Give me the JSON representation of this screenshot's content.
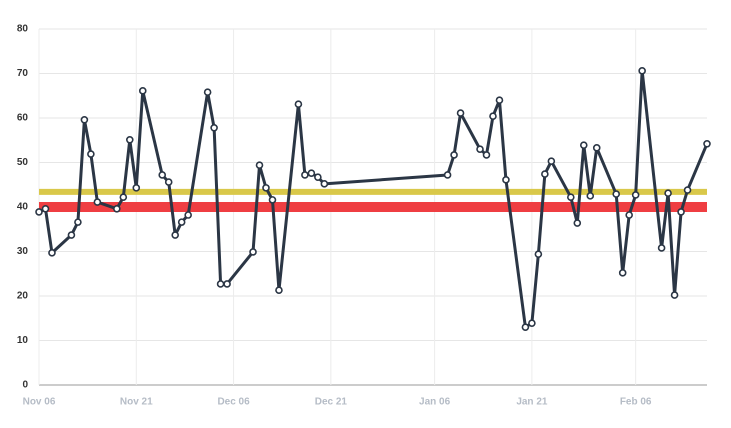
{
  "chart_data": {
    "type": "line",
    "x": [
      "Nov 06",
      "Nov 07",
      "Nov 08",
      "Nov 11",
      "Nov 12",
      "Nov 13",
      "Nov 14",
      "Nov 15",
      "Nov 18",
      "Nov 19",
      "Nov 20",
      "Nov 21",
      "Nov 22",
      "Nov 25",
      "Nov 26",
      "Nov 27",
      "Nov 28",
      "Nov 29",
      "Dec 02",
      "Dec 03",
      "Dec 04",
      "Dec 05",
      "Dec 09",
      "Dec 10",
      "Dec 11",
      "Dec 12",
      "Dec 13",
      "Dec 16",
      "Dec 17",
      "Dec 18",
      "Dec 19",
      "Dec 20",
      "Jan 08",
      "Jan 09",
      "Jan 10",
      "Jan 13",
      "Jan 14",
      "Jan 15",
      "Jan 16",
      "Jan 17",
      "Jan 20",
      "Jan 21",
      "Jan 22",
      "Jan 23",
      "Jan 24",
      "Jan 27",
      "Jan 28",
      "Jan 29",
      "Jan 30",
      "Jan 31",
      "Feb 03",
      "Feb 04",
      "Feb 05",
      "Feb 06",
      "Feb 07",
      "Feb 10",
      "Feb 11",
      "Feb 12",
      "Feb 13",
      "Feb 14",
      "Feb 17"
    ],
    "series": [
      {
        "color": "#2b3645",
        "values": [
          38.9,
          39.6,
          29.7,
          33.7,
          36.6,
          59.6,
          51.9,
          41.1,
          39.6,
          42.2,
          55.1,
          44.3,
          66.1,
          47.2,
          45.6,
          33.7,
          36.6,
          38.2,
          65.8,
          57.8,
          22.7,
          22.7,
          29.9,
          49.4,
          44.3,
          41.6,
          21.3,
          63.1,
          47.2,
          47.6,
          46.7,
          45.2,
          47.2,
          51.7,
          61.1,
          53.0,
          51.7,
          60.4,
          64.0,
          46.1,
          13.0,
          13.9,
          29.4,
          47.4,
          50.3,
          42.2,
          36.4,
          53.9,
          42.5,
          53.3,
          42.9,
          25.2,
          38.2,
          42.7,
          70.6,
          30.8,
          43.1,
          20.2,
          38.9,
          43.8,
          54.2
        ]
      }
    ],
    "reference_lines": [
      {
        "value": 43.4,
        "color": "#d9c84a"
      },
      {
        "value": 40.0,
        "color": "#ef3e42"
      }
    ],
    "xlim": [
      "Nov 06",
      "Feb 17"
    ],
    "xticks": [
      "Nov 06",
      "Nov 21",
      "Dec 06",
      "Dec 21",
      "Jan 06",
      "Jan 21",
      "Feb 06"
    ],
    "ylim": [
      0,
      80
    ],
    "yticks": [
      0,
      10,
      20,
      30,
      40,
      50,
      60,
      70,
      80
    ],
    "grid": true
  }
}
